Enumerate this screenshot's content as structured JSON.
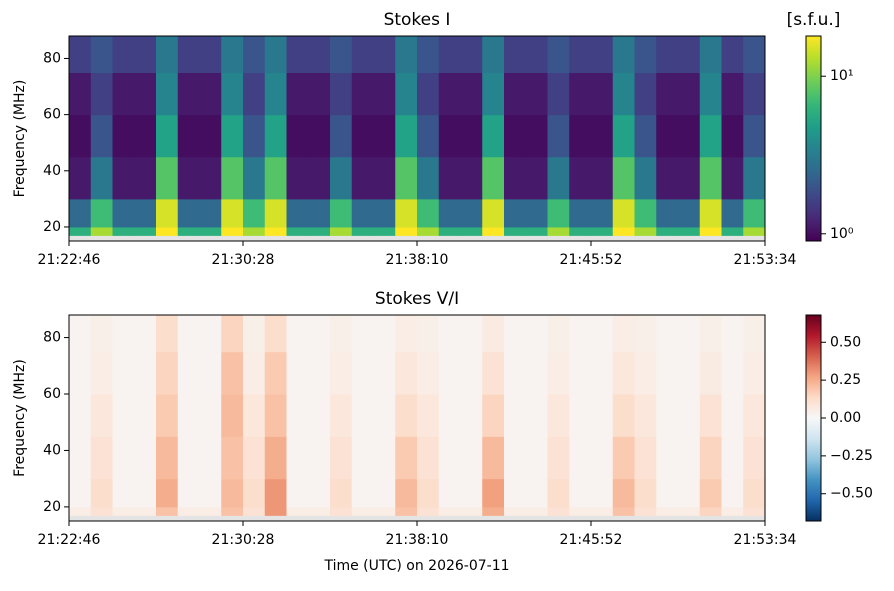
{
  "chart_data": [
    {
      "type": "heatmap",
      "title": "Stokes I",
      "y_label": "Frequency (MHz)",
      "xlim": [
        0,
        1848
      ],
      "xticks": [
        {
          "value": 0,
          "label": "21:22:46"
        },
        {
          "value": 462,
          "label": "21:30:28"
        },
        {
          "value": 924,
          "label": "21:38:10"
        },
        {
          "value": 1386,
          "label": "21:45:52"
        },
        {
          "value": 1848,
          "label": "21:53:34"
        }
      ],
      "ylim": [
        15,
        88
      ],
      "yticks": [
        20,
        40,
        60,
        80
      ],
      "y_bins": [
        15,
        17,
        20,
        30,
        45,
        60,
        75,
        88
      ],
      "z": [
        [
          null,
          null,
          null,
          null,
          null,
          null,
          null,
          null,
          null,
          null,
          null,
          null,
          null,
          null,
          null,
          null,
          null,
          null,
          null,
          null,
          null,
          null,
          null,
          null,
          null,
          null,
          null,
          null,
          null,
          null,
          null,
          null
        ],
        [
          6,
          12,
          6,
          6,
          18,
          6,
          6,
          18,
          12,
          18,
          6,
          6,
          12,
          6,
          6,
          18,
          12,
          6,
          6,
          18,
          6,
          6,
          12,
          6,
          6,
          18,
          12,
          6,
          6,
          18,
          6,
          12
        ],
        [
          2.5,
          7,
          2.5,
          2.5,
          15,
          2.5,
          2.5,
          15,
          7,
          15,
          2.5,
          2.5,
          7,
          2.5,
          2.5,
          15,
          7,
          2.5,
          2.5,
          15,
          2.5,
          2.5,
          7,
          2.5,
          2.5,
          15,
          7,
          2.5,
          2.5,
          15,
          2.5,
          7
        ],
        [
          1.1,
          3,
          1.1,
          1.1,
          8,
          1.1,
          1.1,
          8,
          3,
          8,
          1.1,
          1.1,
          3,
          1.1,
          1.1,
          8,
          3,
          1.1,
          1.1,
          8,
          1.1,
          1.1,
          3,
          1.1,
          1.1,
          8,
          3,
          1.1,
          1.1,
          8,
          1.1,
          3
        ],
        [
          1,
          2,
          1,
          1,
          5,
          1,
          1,
          5,
          2,
          5,
          1,
          1,
          2,
          1,
          1,
          5,
          2,
          1,
          1,
          5,
          1,
          1,
          2,
          1,
          1,
          5,
          2,
          1,
          1,
          5,
          1,
          2
        ],
        [
          1.1,
          1.6,
          1.1,
          1.1,
          3.5,
          1.1,
          1.1,
          3.5,
          1.6,
          3.5,
          1.1,
          1.1,
          1.6,
          1.1,
          1.1,
          3.5,
          1.6,
          1.1,
          1.1,
          3.5,
          1.1,
          1.1,
          1.6,
          1.1,
          1.1,
          3.5,
          1.6,
          1.1,
          1.1,
          3.5,
          1.1,
          1.6
        ],
        [
          1.6,
          2,
          1.6,
          1.6,
          3,
          1.6,
          1.6,
          3,
          2,
          3,
          1.6,
          1.6,
          2,
          1.6,
          1.6,
          3,
          2,
          1.6,
          1.6,
          3,
          1.6,
          1.6,
          2,
          1.6,
          1.6,
          3,
          2,
          1.6,
          1.6,
          3,
          1.6,
          2
        ]
      ],
      "colorbar": {
        "label": "[s.f.u.]",
        "cmap": "viridis",
        "log": true,
        "lim": [
          0.9,
          18
        ],
        "ticks": [
          {
            "value": 1,
            "label": "10⁰"
          },
          {
            "value": 10,
            "label": "10¹"
          }
        ]
      }
    },
    {
      "type": "heatmap",
      "title": "Stokes V/I",
      "x_label": "Time (UTC) on 2026-07-11",
      "y_label": "Frequency (MHz)",
      "xlim": [
        0,
        1848
      ],
      "xticks": [
        {
          "value": 0,
          "label": "21:22:46"
        },
        {
          "value": 462,
          "label": "21:30:28"
        },
        {
          "value": 924,
          "label": "21:38:10"
        },
        {
          "value": 1386,
          "label": "21:45:52"
        },
        {
          "value": 1848,
          "label": "21:53:34"
        }
      ],
      "ylim": [
        15,
        88
      ],
      "yticks": [
        20,
        40,
        60,
        80
      ],
      "y_bins": [
        15,
        17,
        20,
        30,
        45,
        60,
        75,
        88
      ],
      "z": [
        [
          null,
          null,
          null,
          null,
          null,
          null,
          null,
          null,
          null,
          null,
          null,
          null,
          null,
          null,
          null,
          null,
          null,
          null,
          null,
          null,
          null,
          null,
          null,
          null,
          null,
          null,
          null,
          null,
          null,
          null,
          null,
          null
        ],
        [
          0.05,
          0.1,
          0.05,
          0.05,
          0.2,
          0.05,
          0.05,
          0.2,
          0.1,
          0.3,
          0.05,
          0.05,
          0.1,
          0.05,
          0.05,
          0.2,
          0.1,
          0.05,
          0.05,
          0.25,
          0.05,
          0.05,
          0.1,
          0.05,
          0.05,
          0.2,
          0.1,
          0.05,
          0.05,
          0.15,
          0.05,
          0.1
        ],
        [
          0.02,
          0.12,
          0.02,
          0.02,
          0.25,
          0.02,
          0.02,
          0.22,
          0.12,
          0.3,
          0.02,
          0.02,
          0.12,
          0.02,
          0.02,
          0.22,
          0.12,
          0.02,
          0.02,
          0.28,
          0.02,
          0.02,
          0.12,
          0.02,
          0.02,
          0.22,
          0.12,
          0.02,
          0.02,
          0.18,
          0.02,
          0.12
        ],
        [
          0.02,
          0.1,
          0.02,
          0.02,
          0.22,
          0.02,
          0.02,
          0.2,
          0.1,
          0.25,
          0.02,
          0.02,
          0.1,
          0.02,
          0.02,
          0.18,
          0.1,
          0.02,
          0.02,
          0.22,
          0.02,
          0.02,
          0.1,
          0.02,
          0.02,
          0.18,
          0.1,
          0.02,
          0.02,
          0.15,
          0.02,
          0.1
        ],
        [
          0.02,
          0.08,
          0.02,
          0.02,
          0.18,
          0.02,
          0.02,
          0.22,
          0.08,
          0.2,
          0.02,
          0.02,
          0.08,
          0.02,
          0.02,
          0.12,
          0.08,
          0.02,
          0.02,
          0.15,
          0.02,
          0.02,
          0.08,
          0.02,
          0.02,
          0.12,
          0.08,
          0.02,
          0.02,
          0.1,
          0.02,
          0.08
        ],
        [
          0.02,
          0.05,
          0.02,
          0.02,
          0.15,
          0.02,
          0.02,
          0.2,
          0.05,
          0.18,
          0.02,
          0.02,
          0.05,
          0.02,
          0.02,
          0.08,
          0.05,
          0.02,
          0.02,
          0.1,
          0.02,
          0.02,
          0.05,
          0.02,
          0.02,
          0.08,
          0.05,
          0.02,
          0.02,
          0.06,
          0.02,
          0.05
        ],
        [
          0.02,
          0.04,
          0.02,
          0.02,
          0.12,
          0.02,
          0.02,
          0.15,
          0.04,
          0.12,
          0.02,
          0.02,
          0.04,
          0.02,
          0.02,
          0.05,
          0.04,
          0.02,
          0.02,
          0.06,
          0.02,
          0.02,
          0.04,
          0.02,
          0.02,
          0.05,
          0.04,
          0.02,
          0.02,
          0.04,
          0.02,
          0.04
        ]
      ],
      "colorbar": {
        "cmap": "RdBu_r",
        "log": false,
        "lim": [
          -0.68,
          0.68
        ],
        "ticks": [
          {
            "value": -0.5,
            "label": "−0.50"
          },
          {
            "value": -0.25,
            "label": "−0.25"
          },
          {
            "value": 0,
            "label": "0.00"
          },
          {
            "value": 0.25,
            "label": "0.25"
          },
          {
            "value": 0.5,
            "label": "0.50"
          }
        ]
      }
    }
  ]
}
